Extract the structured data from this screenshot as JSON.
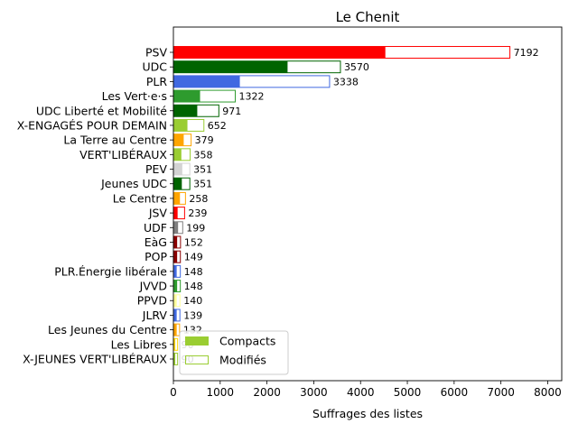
{
  "chart_data": {
    "type": "bar",
    "orientation": "horizontal",
    "title": "Le Chenit",
    "xlabel": "Suffrages des listes",
    "ylabel": "",
    "xlim": [
      0,
      8300
    ],
    "xticks": [
      0,
      1000,
      2000,
      3000,
      4000,
      5000,
      6000,
      7000,
      8000
    ],
    "grid": false,
    "legend_position": "lower-left",
    "legend": [
      {
        "label": "Compacts",
        "style": "filled",
        "color": "#9acd32"
      },
      {
        "label": "Modifiés",
        "style": "outline",
        "color": "#9acd32"
      }
    ],
    "categories": [
      {
        "name": "PSV",
        "total": 7192,
        "compacts": 4530,
        "color": "#ff0000"
      },
      {
        "name": "UDC",
        "total": 3570,
        "compacts": 2440,
        "color": "#006400"
      },
      {
        "name": "PLR",
        "total": 3338,
        "compacts": 1420,
        "color": "#4169e1"
      },
      {
        "name": "Les Vert·e·s",
        "total": 1322,
        "compacts": 570,
        "color": "#2e9b2e"
      },
      {
        "name": "UDC Liberté et Mobilité",
        "total": 971,
        "compacts": 510,
        "color": "#006400"
      },
      {
        "name": "X-ENGAGÉS POUR DEMAIN",
        "total": 652,
        "compacts": 300,
        "color": "#9acd32"
      },
      {
        "name": "La Terre au Centre",
        "total": 379,
        "compacts": 220,
        "color": "#ffa500"
      },
      {
        "name": "VERT'LIBÉRAUX",
        "total": 358,
        "compacts": 170,
        "color": "#9acd32"
      },
      {
        "name": "PEV",
        "total": 351,
        "compacts": 190,
        "color": "#d3d3d3"
      },
      {
        "name": "Jeunes UDC",
        "total": 351,
        "compacts": 180,
        "color": "#006400"
      },
      {
        "name": "Le Centre",
        "total": 258,
        "compacts": 140,
        "color": "#ffa500"
      },
      {
        "name": "JSV",
        "total": 239,
        "compacts": 90,
        "color": "#ff0000"
      },
      {
        "name": "UDF",
        "total": 199,
        "compacts": 100,
        "color": "#808080"
      },
      {
        "name": "EàG",
        "total": 152,
        "compacts": 80,
        "color": "#8b0000"
      },
      {
        "name": "POP",
        "total": 149,
        "compacts": 80,
        "color": "#8b0000"
      },
      {
        "name": "PLR.Énergie libérale",
        "total": 148,
        "compacts": 70,
        "color": "#4169e1"
      },
      {
        "name": "JVVD",
        "total": 148,
        "compacts": 80,
        "color": "#2e9b2e"
      },
      {
        "name": "PPVD",
        "total": 140,
        "compacts": 70,
        "color": "#ffff99"
      },
      {
        "name": "JLRV",
        "total": 139,
        "compacts": 70,
        "color": "#4169e1"
      },
      {
        "name": "Les Jeunes du Centre",
        "total": 132,
        "compacts": 70,
        "color": "#ffa500"
      },
      {
        "name": "Les Libres",
        "total": 90,
        "compacts": 40,
        "color": "#ffd700"
      },
      {
        "name": "X-JEUNES VERT'LIBÉRAUX",
        "total": 90,
        "compacts": 40,
        "color": "#9acd32"
      }
    ]
  }
}
